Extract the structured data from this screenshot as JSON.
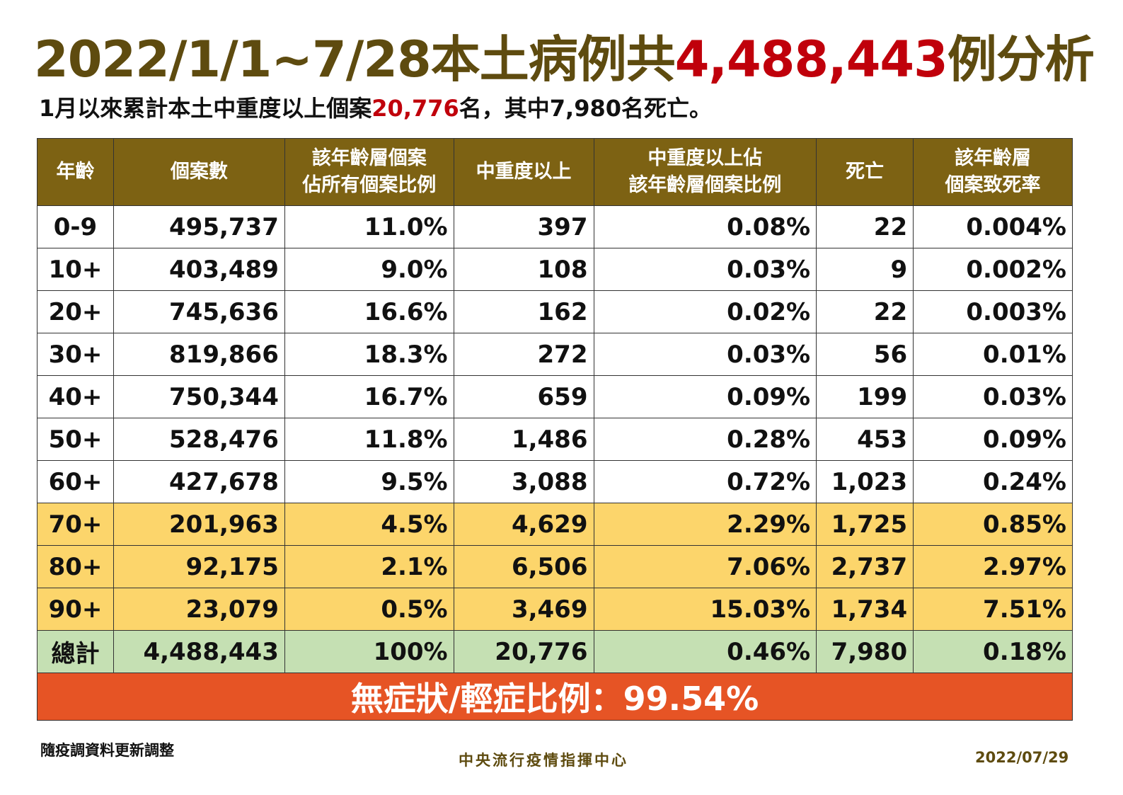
{
  "title": {
    "prefix": "2022/1/1~7/28本土病例共",
    "number": "4,488,443",
    "suffix": "例分析"
  },
  "subtitle": {
    "prefix": "1月以來累計本土中重度以上個案",
    "number": "20,776",
    "suffix": "名，其中7,980名死亡。"
  },
  "headers": [
    "年齡",
    "個案數",
    "該年齡層個案佔所有個案比例",
    "中重度以上",
    "中重度以上佔該年齡層個案比例",
    "死亡",
    "該年齡層個案致死率"
  ],
  "headers_lines": [
    [
      "年齡"
    ],
    [
      "個案數"
    ],
    [
      "該年齡層個案",
      "佔所有個案比例"
    ],
    [
      "中重度以上"
    ],
    [
      "中重度以上佔",
      "該年齡層個案比例"
    ],
    [
      "死亡"
    ],
    [
      "該年齡層",
      "個案致死率"
    ]
  ],
  "rows": [
    [
      "0-9",
      "495,737",
      "11.0%",
      "397",
      "0.08%",
      "22",
      "0.004%"
    ],
    [
      "10+",
      "403,489",
      "9.0%",
      "108",
      "0.03%",
      "9",
      "0.002%"
    ],
    [
      "20+",
      "745,636",
      "16.6%",
      "162",
      "0.02%",
      "22",
      "0.003%"
    ],
    [
      "30+",
      "819,866",
      "18.3%",
      "272",
      "0.03%",
      "56",
      "0.01%"
    ],
    [
      "40+",
      "750,344",
      "16.7%",
      "659",
      "0.09%",
      "199",
      "0.03%"
    ],
    [
      "50+",
      "528,476",
      "11.8%",
      "1,486",
      "0.28%",
      "453",
      "0.09%"
    ],
    [
      "60+",
      "427,678",
      "9.5%",
      "3,088",
      "0.72%",
      "1,023",
      "0.24%"
    ],
    [
      "70+",
      "201,963",
      "4.5%",
      "4,629",
      "2.29%",
      "1,725",
      "0.85%"
    ],
    [
      "80+",
      "92,175",
      "2.1%",
      "6,506",
      "7.06%",
      "2,737",
      "2.97%"
    ],
    [
      "90+",
      "23,079",
      "0.5%",
      "3,469",
      "15.03%",
      "1,734",
      "7.51%"
    ],
    [
      "總計",
      "4,488,443",
      "100%",
      "20,776",
      "0.46%",
      "7,980",
      "0.18%"
    ]
  ],
  "highlight_rows": {
    "elderly": [
      7,
      8,
      9
    ],
    "total": [
      10
    ]
  },
  "summary": "無症狀/輕症比例：99.54%",
  "footer": {
    "note": "隨疫調資料更新調整",
    "org": "中央流行疫情指揮中心",
    "date": "2022/07/29"
  },
  "colors": {
    "header": "#7d6213",
    "title": "#5e4b0f",
    "red": "#c0000b",
    "elderly": "#fcd56b",
    "total": "#c5e0b3",
    "summary": "#e65425"
  }
}
